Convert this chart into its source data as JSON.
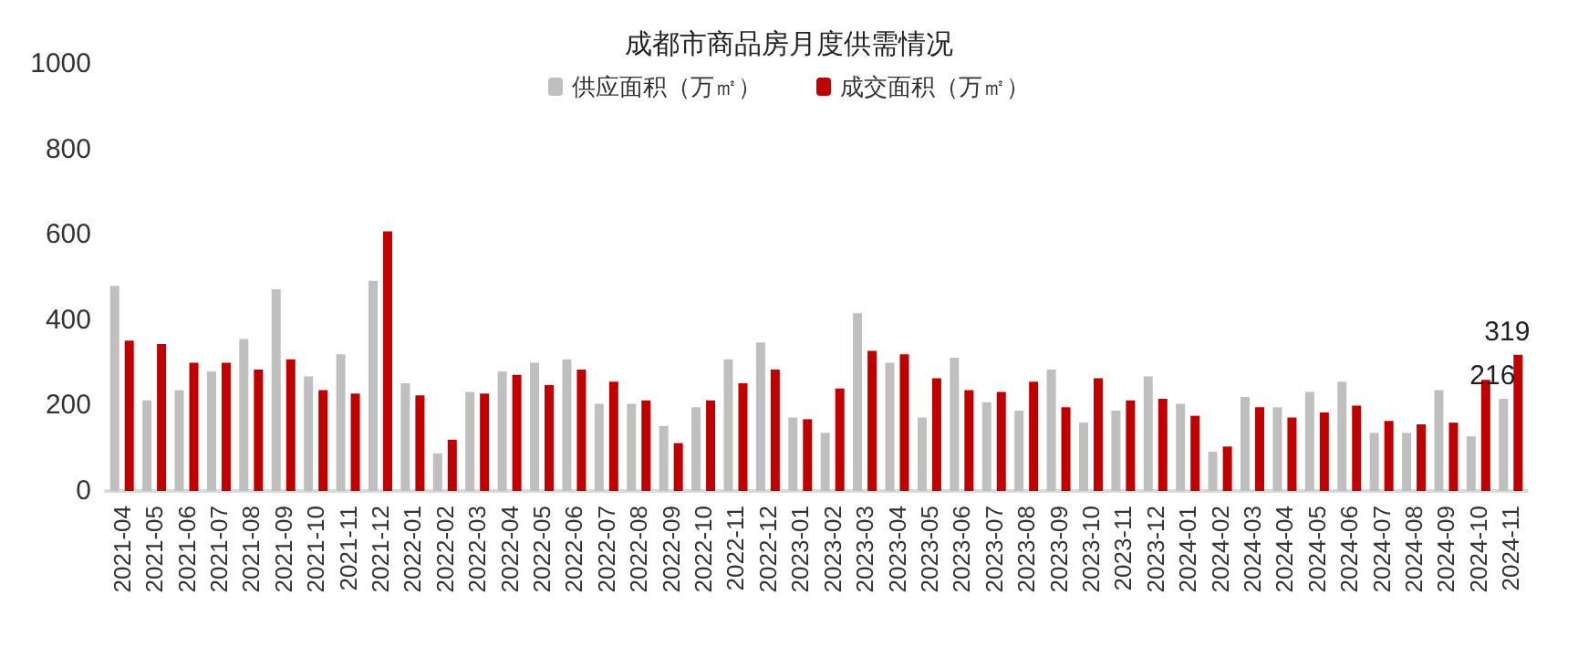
{
  "chart_data": {
    "type": "bar",
    "title": "成都市商品房月度供需情况",
    "categories": [
      "2021-04",
      "2021-05",
      "2021-06",
      "2021-07",
      "2021-08",
      "2021-09",
      "2021-10",
      "2021-11",
      "2021-12",
      "2022-01",
      "2022-02",
      "2022-03",
      "2022-04",
      "2022-05",
      "2022-06",
      "2022-07",
      "2022-08",
      "2022-09",
      "2022-10",
      "2022-11",
      "2022-12",
      "2023-01",
      "2023-02",
      "2023-03",
      "2023-04",
      "2023-05",
      "2023-06",
      "2023-07",
      "2023-08",
      "2023-09",
      "2023-10",
      "2023-11",
      "2023-12",
      "2024-01",
      "2024-02",
      "2024-03",
      "2024-04",
      "2024-05",
      "2024-06",
      "2024-07",
      "2024-08",
      "2024-09",
      "2024-10",
      "2024-11"
    ],
    "series": [
      {
        "name": "供应面积（万㎡）",
        "color": "#bfbfbf",
        "values": [
          480,
          212,
          236,
          280,
          356,
          472,
          268,
          320,
          492,
          252,
          88,
          232,
          280,
          300,
          308,
          204,
          204,
          152,
          196,
          308,
          348,
          172,
          136,
          416,
          300,
          172,
          312,
          208,
          188,
          284,
          160,
          188,
          268,
          204,
          92,
          220,
          196,
          232,
          256,
          136,
          136,
          236,
          128,
          216
        ],
        "value_labels": [
          null,
          null,
          null,
          null,
          null,
          null,
          null,
          null,
          null,
          null,
          null,
          null,
          null,
          null,
          null,
          null,
          null,
          null,
          null,
          null,
          null,
          null,
          null,
          null,
          null,
          null,
          null,
          null,
          null,
          null,
          null,
          null,
          null,
          null,
          null,
          null,
          null,
          null,
          null,
          null,
          null,
          null,
          null,
          "216"
        ]
      },
      {
        "name": "成交面积（万㎡）",
        "color": "#c00000",
        "values": [
          352,
          344,
          300,
          300,
          284,
          308,
          236,
          228,
          608,
          224,
          120,
          228,
          272,
          248,
          284,
          256,
          212,
          112,
          212,
          252,
          284,
          168,
          240,
          328,
          320,
          264,
          236,
          232,
          256,
          196,
          264,
          212,
          216,
          176,
          104,
          196,
          172,
          184,
          200,
          164,
          156,
          160,
          260,
          319
        ],
        "value_labels": [
          null,
          null,
          null,
          null,
          null,
          null,
          null,
          null,
          null,
          null,
          null,
          null,
          null,
          null,
          null,
          null,
          null,
          null,
          null,
          null,
          null,
          null,
          null,
          null,
          null,
          null,
          null,
          null,
          null,
          null,
          null,
          null,
          null,
          null,
          null,
          null,
          null,
          null,
          null,
          null,
          null,
          null,
          null,
          "319"
        ]
      }
    ],
    "ylim": [
      0,
      1000
    ],
    "yticks": [
      0,
      200,
      400,
      600,
      800,
      1000
    ],
    "grid": false,
    "legend": "top"
  }
}
